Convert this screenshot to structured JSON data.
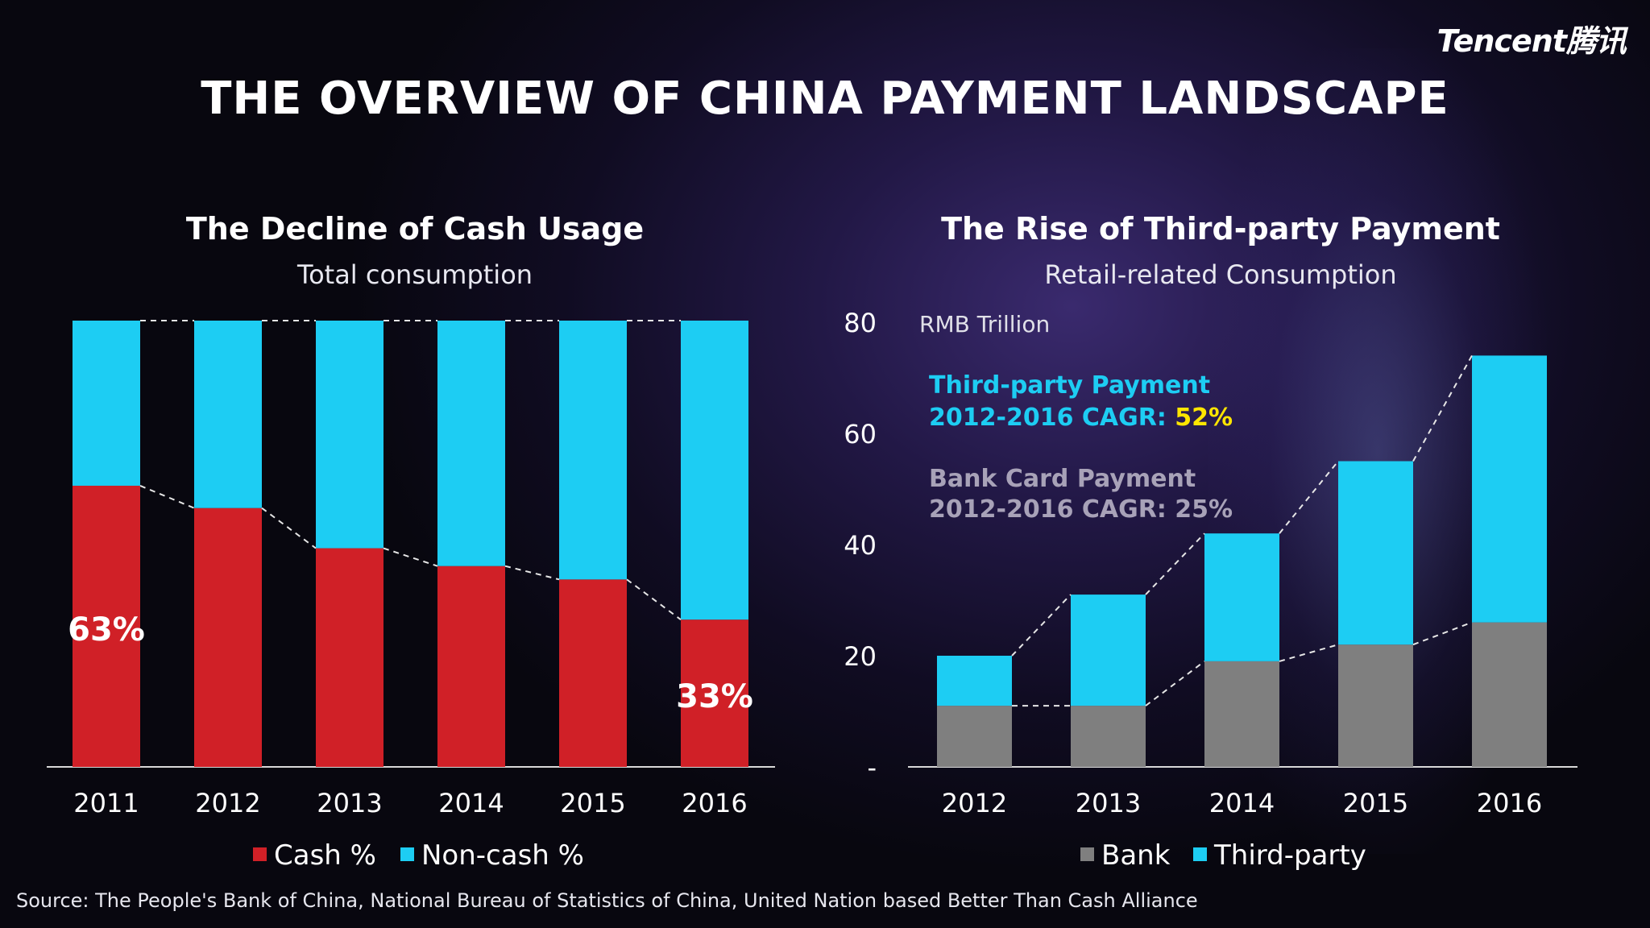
{
  "brand": "Tencent腾讯",
  "main_title": "THE OVERVIEW OF CHINA PAYMENT LANDSCAPE",
  "source": "Source: The People's Bank of China, National Bureau of Statistics of China, United Nation based Better Than Cash Alliance",
  "colors": {
    "red": "#d02027",
    "cyan": "#1dcdf3",
    "gray": "#7f7f7f",
    "yellow": "#ffe600",
    "grayText": "#a8a2b8"
  },
  "chart_data": [
    {
      "type": "bar",
      "title": "The Decline of Cash Usage",
      "subtitle": "Total consumption",
      "categories": [
        "2011",
        "2012",
        "2013",
        "2014",
        "2015",
        "2016"
      ],
      "stacked": true,
      "series": [
        {
          "name": "Cash %",
          "values": [
            63,
            58,
            49,
            45,
            42,
            33
          ]
        },
        {
          "name": "Non-cash %",
          "values": [
            37,
            42,
            51,
            55,
            58,
            67
          ]
        }
      ],
      "ylim": [
        0,
        100
      ],
      "data_labels": [
        {
          "category": "2011",
          "text": "63%"
        },
        {
          "category": "2016",
          "text": "33%"
        }
      ],
      "legend": "bottom"
    },
    {
      "type": "bar",
      "title": "The Rise of Third-party Payment",
      "subtitle": "Retail-related Consumption",
      "unit_label": "RMB Trillion",
      "categories": [
        "2012",
        "2013",
        "2014",
        "2015",
        "2016"
      ],
      "stacked": true,
      "series": [
        {
          "name": "Bank",
          "values": [
            11,
            11,
            19,
            22,
            26
          ]
        },
        {
          "name": "Third-party",
          "values": [
            9,
            20,
            23,
            33,
            48
          ]
        }
      ],
      "ylim": [
        0,
        80
      ],
      "yticks": [
        "-",
        "20",
        "40",
        "60",
        "80"
      ],
      "annotations": [
        {
          "line1": "Third-party Payment",
          "line2": "2012-2016 CAGR: ",
          "value": "52%"
        },
        {
          "line1": "Bank Card Payment",
          "line2": "2012-2016 CAGR: 25%"
        }
      ],
      "legend": "bottom"
    }
  ]
}
